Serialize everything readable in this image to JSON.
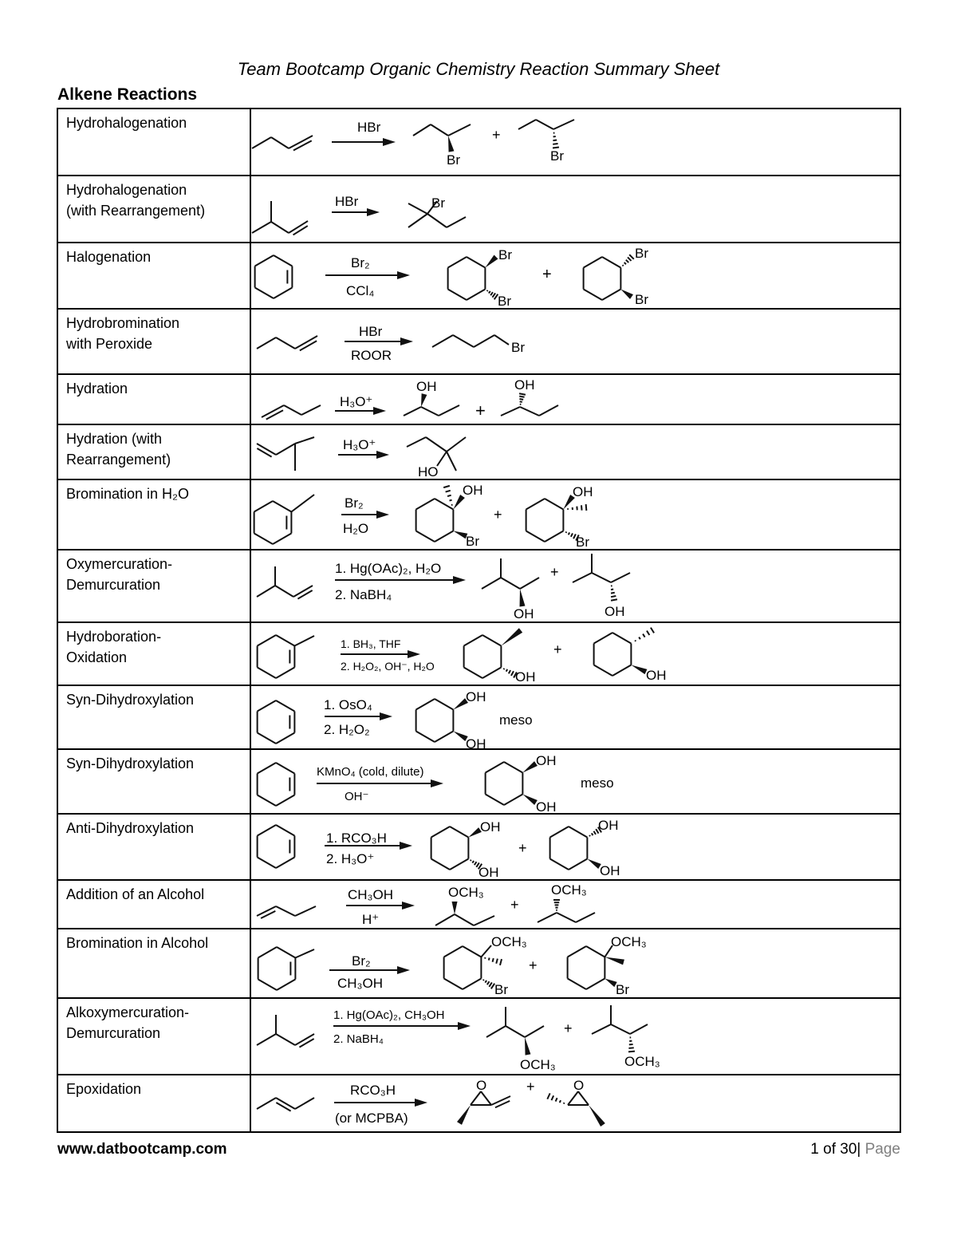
{
  "header": {
    "title": "Team Bootcamp Organic Chemistry Reaction Summary Sheet",
    "section": "Alkene Reactions"
  },
  "rows": [
    {
      "name": [
        "Hydrohalogenation"
      ],
      "reagents": [
        "HBr"
      ],
      "labels": [
        "Br",
        "Br"
      ],
      "plus": "+"
    },
    {
      "name": [
        "Hydrohalogenation",
        "(with Rearrangement)"
      ],
      "reagents": [
        "HBr"
      ],
      "labels": [
        "Br"
      ]
    },
    {
      "name": [
        "Halogenation"
      ],
      "reagents": [
        "Br₂",
        "CCl₄"
      ],
      "labels": [
        "Br",
        "Br",
        "Br",
        "Br"
      ],
      "plus": "+"
    },
    {
      "name": [
        "Hydrobromination",
        "with Peroxide"
      ],
      "reagents": [
        "HBr",
        "ROOR"
      ],
      "labels": [
        "Br"
      ]
    },
    {
      "name": [
        "Hydration"
      ],
      "reagents": [
        "H₃O⁺"
      ],
      "labels": [
        "OH",
        "OH"
      ],
      "plus": "+"
    },
    {
      "name": [
        "Hydration (with",
        "Rearrangement)"
      ],
      "reagents": [
        "H₃O⁺"
      ],
      "labels": [
        "HO"
      ]
    },
    {
      "name": [
        "Bromination in H₂O"
      ],
      "reagents": [
        "Br₂",
        "H₂O"
      ],
      "labels": [
        "OH",
        "Br",
        "OH",
        "Br"
      ],
      "plus": "+"
    },
    {
      "name": [
        "Oxymercuration-",
        "Demurcuration"
      ],
      "reagents": [
        "1. Hg(OAc)₂, H₂O",
        "2. NaBH₄"
      ],
      "labels": [
        "OH",
        "OH"
      ],
      "plus": "+"
    },
    {
      "name": [
        "Hydroboration-",
        "Oxidation"
      ],
      "reagents": [
        "1. BH₃, THF",
        "2. H₂O₂, OH⁻, H₂O"
      ],
      "labels": [
        "OH",
        "OH"
      ],
      "plus": "+"
    },
    {
      "name": [
        "Syn-Dihydroxylation"
      ],
      "reagents": [
        "1. OsO₄",
        "2. H₂O₂"
      ],
      "labels": [
        "OH",
        "OH"
      ],
      "note": "meso"
    },
    {
      "name": [
        "Syn-Dihydroxylation"
      ],
      "reagents": [
        "KMnO₄ (cold, dilute)",
        "OH⁻"
      ],
      "labels": [
        "OH",
        "OH"
      ],
      "note": "meso"
    },
    {
      "name": [
        "Anti-Dihydroxylation"
      ],
      "reagents": [
        "1. RCO₃H",
        "2. H₃O⁺"
      ],
      "labels": [
        "OH",
        "OH",
        "OH",
        "OH"
      ],
      "plus": "+"
    },
    {
      "name": [
        "Addition of an Alcohol"
      ],
      "reagents": [
        "CH₃OH",
        "H⁺"
      ],
      "labels": [
        "OCH₃",
        "OCH₃"
      ],
      "plus": "+"
    },
    {
      "name": [
        "Bromination in Alcohol"
      ],
      "reagents": [
        "Br₂",
        "CH₃OH"
      ],
      "labels": [
        "OCH₃",
        "Br",
        "OCH₃",
        "Br"
      ],
      "plus": "+"
    },
    {
      "name": [
        "Alkoxymercuration-",
        "Demurcuration"
      ],
      "reagents": [
        "1. Hg(OAc)₂, CH₃OH",
        "2. NaBH₄"
      ],
      "labels": [
        "OCH₃",
        "OCH₃"
      ],
      "plus": "+"
    },
    {
      "name": [
        "Epoxidation"
      ],
      "reagents": [
        "RCO₃H",
        "(or MCPBA)"
      ],
      "labels": [
        "O",
        "O"
      ],
      "plus": "+"
    }
  ],
  "footer": {
    "website": "www.datbootcamp.com",
    "page": "1 of 30|",
    "page_word": " Page"
  }
}
